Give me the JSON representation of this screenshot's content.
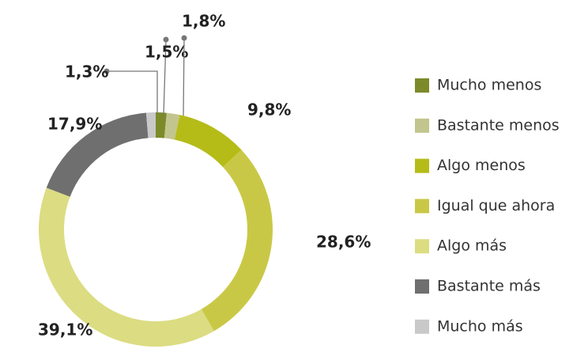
{
  "chart_data": {
    "type": "donut",
    "categories": [
      "Mucho menos",
      "Bastante menos",
      "Algo menos",
      "Igual que ahora",
      "Algo más",
      "Bastante más",
      "Mucho más"
    ],
    "values": [
      1.5,
      1.8,
      9.8,
      28.6,
      39.1,
      17.9,
      1.3
    ],
    "value_labels": [
      "1,5%",
      "1,8%",
      "9,8%",
      "28,6%",
      "39,1%",
      "17,9%",
      "1,3%"
    ],
    "colors": [
      "#7d8a2a",
      "#c3c58f",
      "#b5bc18",
      "#c9c846",
      "#dcdc82",
      "#6f6f6f",
      "#c9c9c9"
    ]
  }
}
